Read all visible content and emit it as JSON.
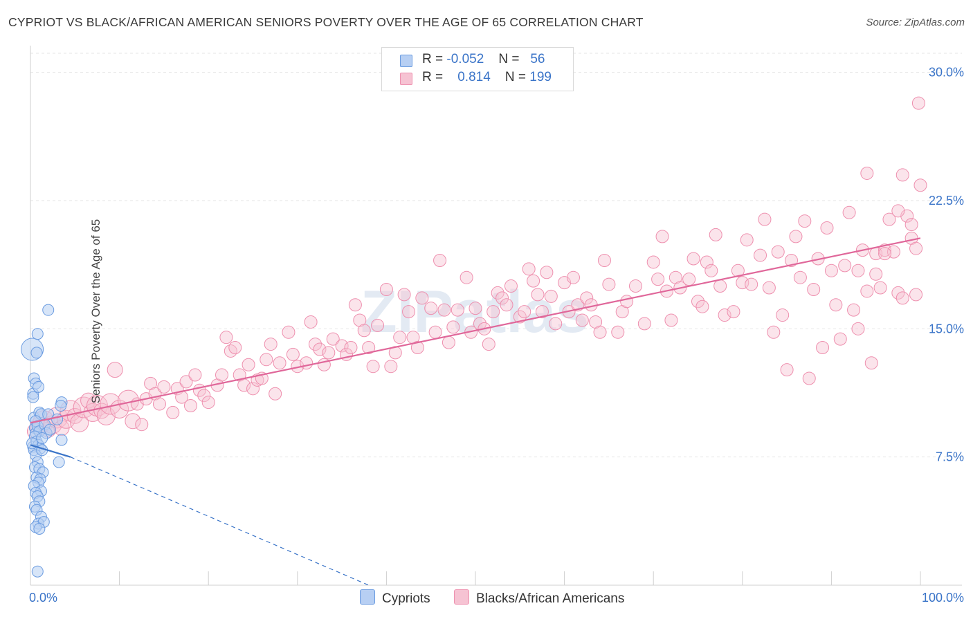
{
  "title": "CYPRIOT VS BLACK/AFRICAN AMERICAN SENIORS POVERTY OVER THE AGE OF 65 CORRELATION CHART",
  "source": "Source: ZipAtlas.com",
  "watermark": "ZIPatlas",
  "legend": {
    "row1": {
      "r_label": "R =",
      "r_value": "-0.052",
      "n_label": "N =",
      "n_value": "56"
    },
    "row2": {
      "r_label": "R =",
      "r_value": "0.814",
      "n_label": "N =",
      "n_value": "199"
    }
  },
  "bottom_legend": {
    "series1": "Cypriots",
    "series2": "Blacks/African Americans"
  },
  "colors": {
    "blue": "#6a9be0",
    "blue_fill": "#b7cff3",
    "pink": "#ee8fae",
    "pink_fill": "#f6c3d3",
    "blue_line": "#3a74c8",
    "pink_line": "#e0679a",
    "tick_text": "#3a74c8"
  },
  "chart_data": {
    "type": "scatter",
    "title": "CYPRIOT VS BLACK/AFRICAN AMERICAN SENIORS POVERTY OVER THE AGE OF 65 CORRELATION CHART",
    "xlabel": "",
    "ylabel": "Seniors Poverty Over the Age of 65",
    "xlim": [
      0,
      100
    ],
    "ylim": [
      0,
      31.2
    ],
    "x_tick_labels": [
      "0.0%",
      "100.0%"
    ],
    "y_ticks": [
      7.5,
      15.0,
      22.5,
      30.0
    ],
    "y_tick_labels": [
      "7.5%",
      "15.0%",
      "22.5%",
      "30.0%"
    ],
    "grid": true,
    "series": [
      {
        "name": "Cypriots",
        "R": -0.052,
        "N": 56,
        "trend": {
          "x0": 0,
          "y0": 8.2,
          "x1": 4.5,
          "y1": 7.5,
          "dash_to_x": 38,
          "dash_to_y": 0
        },
        "points": [
          [
            0.2,
            13.8
          ],
          [
            0.3,
            11.2
          ],
          [
            0.4,
            9.8
          ],
          [
            0.5,
            9.2
          ],
          [
            0.6,
            8.9
          ],
          [
            0.3,
            8.1
          ],
          [
            0.8,
            14.7
          ],
          [
            0.7,
            13.6
          ],
          [
            0.4,
            12.1
          ],
          [
            0.6,
            11.8
          ],
          [
            0.9,
            11.6
          ],
          [
            0.3,
            11.0
          ],
          [
            1.0,
            10.1
          ],
          [
            1.2,
            10.0
          ],
          [
            0.6,
            9.6
          ],
          [
            0.8,
            9.3
          ],
          [
            1.0,
            9.0
          ],
          [
            0.5,
            8.7
          ],
          [
            0.7,
            8.4
          ],
          [
            0.9,
            8.2
          ],
          [
            1.1,
            8.0
          ],
          [
            0.4,
            7.9
          ],
          [
            0.6,
            7.6
          ],
          [
            1.3,
            7.9
          ],
          [
            0.8,
            7.2
          ],
          [
            0.5,
            6.9
          ],
          [
            1.0,
            6.8
          ],
          [
            1.4,
            6.6
          ],
          [
            0.7,
            6.3
          ],
          [
            1.1,
            6.2
          ],
          [
            0.9,
            6.0
          ],
          [
            0.4,
            5.8
          ],
          [
            1.2,
            5.5
          ],
          [
            0.6,
            5.4
          ],
          [
            0.8,
            5.2
          ],
          [
            1.0,
            4.9
          ],
          [
            0.5,
            4.6
          ],
          [
            0.7,
            4.4
          ],
          [
            1.2,
            4.0
          ],
          [
            0.9,
            3.6
          ],
          [
            1.5,
            3.7
          ],
          [
            0.6,
            3.4
          ],
          [
            1.0,
            3.3
          ],
          [
            0.8,
            0.8
          ],
          [
            3.5,
            10.7
          ],
          [
            3.4,
            10.5
          ],
          [
            2.0,
            10.0
          ],
          [
            3.0,
            9.7
          ],
          [
            3.5,
            8.5
          ],
          [
            3.2,
            7.2
          ],
          [
            1.6,
            9.4
          ],
          [
            1.8,
            8.9
          ],
          [
            2.2,
            9.1
          ],
          [
            1.3,
            8.6
          ],
          [
            0.2,
            8.3
          ],
          [
            2.0,
            16.1
          ]
        ]
      },
      {
        "name": "Blacks/African Americans",
        "R": 0.814,
        "N": 199,
        "trend": {
          "x0": 0,
          "y0": 9.5,
          "x1": 100,
          "y1": 20.3
        },
        "points": [
          [
            0.5,
            9.0
          ],
          [
            1.0,
            9.3
          ],
          [
            1.5,
            9.6
          ],
          [
            2.0,
            9.1
          ],
          [
            2.5,
            9.4
          ],
          [
            3.0,
            9.8
          ],
          [
            3.5,
            9.2
          ],
          [
            4.0,
            9.7
          ],
          [
            4.5,
            10.2
          ],
          [
            5.0,
            9.9
          ],
          [
            5.5,
            9.5
          ],
          [
            6.0,
            10.4
          ],
          [
            6.5,
            10.8
          ],
          [
            7.0,
            10.1
          ],
          [
            7.5,
            10.5
          ],
          [
            8.0,
            10.2
          ],
          [
            8.5,
            9.9
          ],
          [
            9.0,
            10.6
          ],
          [
            9.5,
            12.6
          ],
          [
            10.0,
            10.3
          ],
          [
            11.0,
            10.8
          ],
          [
            11.5,
            9.6
          ],
          [
            12.0,
            10.6
          ],
          [
            12.5,
            9.4
          ],
          [
            13.0,
            10.9
          ],
          [
            13.5,
            11.8
          ],
          [
            14.0,
            11.2
          ],
          [
            14.5,
            10.6
          ],
          [
            15.0,
            11.6
          ],
          [
            16.0,
            10.1
          ],
          [
            16.5,
            11.5
          ],
          [
            17.0,
            11.0
          ],
          [
            17.5,
            11.9
          ],
          [
            18.0,
            10.5
          ],
          [
            18.5,
            12.3
          ],
          [
            19.0,
            11.4
          ],
          [
            19.5,
            11.1
          ],
          [
            20.0,
            10.7
          ],
          [
            21.0,
            11.7
          ],
          [
            21.5,
            12.3
          ],
          [
            22.0,
            14.5
          ],
          [
            22.5,
            13.7
          ],
          [
            23.0,
            13.9
          ],
          [
            23.5,
            12.3
          ],
          [
            24.0,
            11.7
          ],
          [
            24.5,
            12.9
          ],
          [
            25.0,
            11.5
          ],
          [
            25.5,
            12.0
          ],
          [
            26.0,
            12.1
          ],
          [
            26.5,
            13.2
          ],
          [
            27.0,
            14.1
          ],
          [
            27.5,
            11.2
          ],
          [
            28.0,
            13.0
          ],
          [
            29.0,
            14.8
          ],
          [
            29.5,
            13.5
          ],
          [
            30.0,
            12.8
          ],
          [
            31.0,
            13.0
          ],
          [
            31.5,
            15.4
          ],
          [
            32.0,
            14.1
          ],
          [
            32.5,
            13.8
          ],
          [
            33.0,
            12.9
          ],
          [
            33.5,
            13.6
          ],
          [
            34.0,
            14.4
          ],
          [
            35.0,
            14.0
          ],
          [
            35.5,
            13.5
          ],
          [
            36.0,
            13.9
          ],
          [
            36.5,
            16.4
          ],
          [
            37.0,
            15.5
          ],
          [
            37.5,
            14.9
          ],
          [
            38.0,
            13.9
          ],
          [
            38.5,
            12.8
          ],
          [
            39.0,
            15.2
          ],
          [
            40.0,
            17.3
          ],
          [
            40.5,
            12.8
          ],
          [
            41.0,
            13.6
          ],
          [
            41.5,
            14.5
          ],
          [
            42.0,
            17.0
          ],
          [
            42.5,
            16.0
          ],
          [
            43.0,
            14.5
          ],
          [
            43.5,
            13.9
          ],
          [
            44.0,
            16.8
          ],
          [
            45.0,
            16.2
          ],
          [
            45.5,
            14.8
          ],
          [
            46.0,
            19.0
          ],
          [
            46.5,
            16.1
          ],
          [
            47.0,
            14.2
          ],
          [
            47.5,
            15.1
          ],
          [
            48.0,
            16.1
          ],
          [
            49.0,
            18.0
          ],
          [
            49.5,
            14.8
          ],
          [
            50.0,
            16.2
          ],
          [
            50.5,
            15.3
          ],
          [
            51.0,
            15.0
          ],
          [
            51.5,
            14.1
          ],
          [
            52.0,
            16.0
          ],
          [
            52.5,
            17.1
          ],
          [
            53.0,
            16.8
          ],
          [
            53.5,
            16.4
          ],
          [
            54.0,
            17.5
          ],
          [
            55.0,
            15.7
          ],
          [
            55.5,
            16.0
          ],
          [
            56.0,
            18.5
          ],
          [
            56.5,
            17.8
          ],
          [
            57.0,
            17.0
          ],
          [
            57.5,
            16.0
          ],
          [
            58.0,
            18.3
          ],
          [
            58.5,
            16.9
          ],
          [
            59.0,
            15.3
          ],
          [
            60.0,
            17.7
          ],
          [
            60.5,
            16.0
          ],
          [
            61.0,
            18.0
          ],
          [
            61.5,
            16.4
          ],
          [
            62.0,
            15.5
          ],
          [
            62.5,
            16.8
          ],
          [
            63.0,
            16.4
          ],
          [
            63.5,
            15.4
          ],
          [
            64.0,
            14.8
          ],
          [
            64.5,
            19.0
          ],
          [
            65.0,
            17.6
          ],
          [
            66.0,
            14.8
          ],
          [
            66.5,
            16.0
          ],
          [
            67.0,
            16.6
          ],
          [
            68.0,
            17.5
          ],
          [
            69.0,
            15.3
          ],
          [
            70.0,
            18.9
          ],
          [
            70.5,
            17.9
          ],
          [
            71.0,
            20.4
          ],
          [
            71.5,
            17.2
          ],
          [
            72.0,
            15.5
          ],
          [
            72.5,
            18.0
          ],
          [
            73.0,
            17.4
          ],
          [
            74.0,
            17.9
          ],
          [
            74.5,
            19.1
          ],
          [
            75.0,
            16.6
          ],
          [
            75.5,
            16.3
          ],
          [
            76.0,
            18.9
          ],
          [
            76.5,
            18.4
          ],
          [
            77.0,
            20.5
          ],
          [
            77.5,
            17.5
          ],
          [
            78.0,
            15.8
          ],
          [
            79.0,
            16.0
          ],
          [
            79.5,
            18.4
          ],
          [
            80.0,
            17.7
          ],
          [
            80.5,
            20.2
          ],
          [
            81.0,
            17.6
          ],
          [
            82.0,
            19.3
          ],
          [
            82.5,
            21.4
          ],
          [
            83.0,
            17.4
          ],
          [
            83.5,
            14.8
          ],
          [
            84.0,
            19.5
          ],
          [
            84.5,
            15.8
          ],
          [
            85.0,
            12.6
          ],
          [
            85.5,
            19.0
          ],
          [
            86.0,
            20.4
          ],
          [
            86.5,
            18.0
          ],
          [
            87.0,
            21.3
          ],
          [
            87.5,
            12.1
          ],
          [
            88.0,
            17.3
          ],
          [
            88.5,
            19.1
          ],
          [
            89.0,
            13.9
          ],
          [
            89.5,
            20.9
          ],
          [
            90.0,
            18.4
          ],
          [
            90.5,
            16.4
          ],
          [
            91.0,
            14.4
          ],
          [
            91.5,
            18.7
          ],
          [
            92.0,
            21.8
          ],
          [
            92.5,
            16.1
          ],
          [
            93.0,
            18.4
          ],
          [
            93.5,
            19.6
          ],
          [
            94.0,
            17.2
          ],
          [
            94.5,
            13.0
          ],
          [
            95.0,
            19.4
          ],
          [
            95.5,
            17.4
          ],
          [
            96.0,
            19.6
          ],
          [
            96.5,
            21.4
          ],
          [
            97.0,
            19.5
          ],
          [
            97.5,
            17.1
          ],
          [
            98.0,
            16.8
          ],
          [
            98.5,
            21.6
          ],
          [
            99.0,
            20.3
          ],
          [
            99.5,
            19.7
          ],
          [
            100.0,
            23.4
          ],
          [
            99.8,
            28.2
          ],
          [
            94.0,
            24.1
          ],
          [
            98.0,
            24.0
          ],
          [
            99.0,
            21.1
          ],
          [
            99.5,
            17.0
          ],
          [
            97.5,
            21.9
          ],
          [
            96.0,
            19.4
          ],
          [
            95.0,
            18.2
          ],
          [
            93.0,
            15.0
          ]
        ]
      }
    ]
  }
}
